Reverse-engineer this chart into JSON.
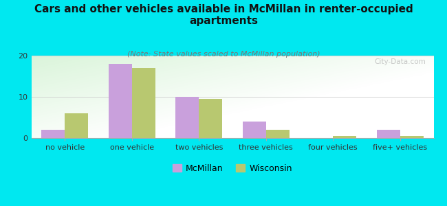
{
  "title": "Cars and other vehicles available in McMillan in renter-occupied\napartments",
  "subtitle": "(Note: State values scaled to McMillan population)",
  "categories": [
    "no vehicle",
    "one vehicle",
    "two vehicles",
    "three vehicles",
    "four vehicles",
    "five+ vehicles"
  ],
  "mcmillan_values": [
    2,
    18,
    10,
    4,
    0,
    2
  ],
  "wisconsin_values": [
    6,
    17,
    9.5,
    2,
    0.5,
    0.5
  ],
  "mcmillan_color": "#c9a0dc",
  "wisconsin_color": "#b8c870",
  "background_outer": "#00e8f0",
  "ylim": [
    0,
    20
  ],
  "yticks": [
    0,
    10,
    20
  ],
  "bar_width": 0.35,
  "title_fontsize": 11,
  "subtitle_fontsize": 8,
  "tick_fontsize": 8,
  "legend_fontsize": 9,
  "watermark_text": "City-Data.com"
}
